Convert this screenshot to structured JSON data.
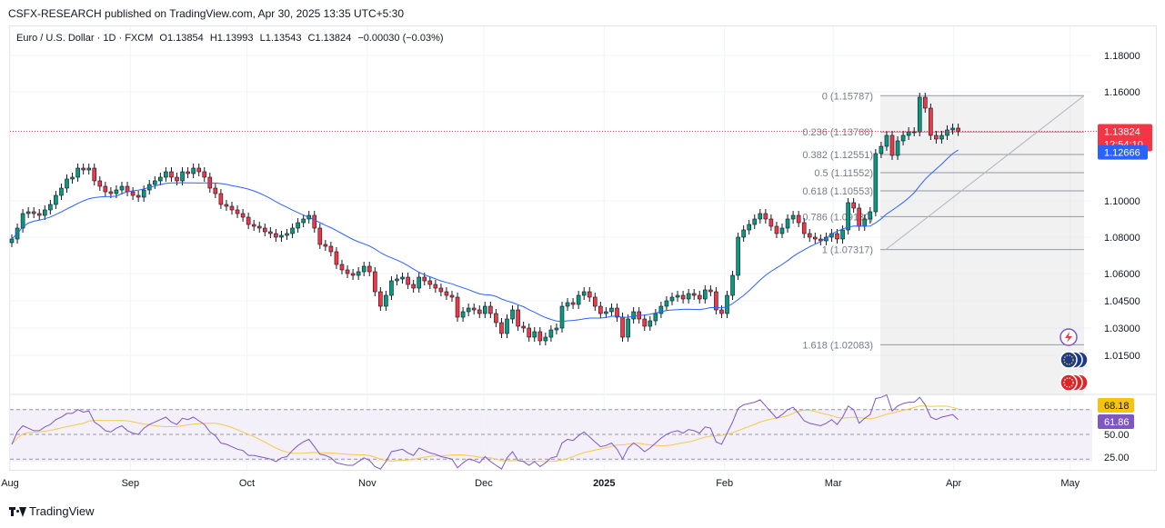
{
  "header": {
    "publisher": "CSFX-RESEARCH published on TradingView.com, Apr 30, 2025 13:35 UTC+5:30"
  },
  "legend": {
    "symbol": "Euro / U.S. Dollar · 1D · FXCM",
    "open": "O1.13854",
    "high": "H1.13993",
    "low": "L1.13543",
    "close": "C1.13824",
    "change": "−0.00030 (−0.03%)"
  },
  "footer": {
    "brand": "TradingView"
  },
  "colors": {
    "up": "#089981",
    "down": "#f23645",
    "ma": "#2962ff",
    "rsi": "#7e57c2",
    "rsi_ma": "#f7c948",
    "price_badge": "#f23645",
    "ma_badge": "#2962ff",
    "rsi_badge": "#7e57c2",
    "rsi_ma_badge": "#f5c40f"
  },
  "icons": [
    "lightning-icon",
    "eu-flag-icon",
    "us-flag-icon"
  ],
  "chart_data": {
    "type": "candlestick",
    "price_axis": {
      "range": [
        1.005,
        1.19
      ],
      "ticks": [
        "1.18000",
        "1.16000",
        "1.10000",
        "1.08000",
        "1.06000",
        "1.04500",
        "1.03000",
        "1.01500"
      ]
    },
    "time_axis": {
      "labels": [
        "Aug",
        "Sep",
        "Oct",
        "Nov",
        "Dec",
        "2025",
        "Feb",
        "Mar",
        "Apr",
        "May"
      ]
    },
    "last_price": {
      "value": "1.13824",
      "countdown": "12:54:10"
    },
    "ma_value": "1.12666",
    "fibonacci": {
      "levels": [
        {
          "label": "0 (1.15787)",
          "value": 1.15787
        },
        {
          "label": "0.236 (1.13788)",
          "value": 1.13788
        },
        {
          "label": "0.382 (1.12551)",
          "value": 1.12551
        },
        {
          "label": "0.5 (1.11552)",
          "value": 1.11552
        },
        {
          "label": "0.618 (1.10553)",
          "value": 1.10553
        },
        {
          "label": "0.786 (1.09130)",
          "value": 1.0913
        },
        {
          "label": "1 (1.07317)",
          "value": 1.07317
        },
        {
          "label": "1.618 (1.02083)",
          "value": 1.02083
        }
      ]
    },
    "rsi": {
      "range": [
        15,
        90
      ],
      "ticks": [
        "50.00",
        "25.00"
      ],
      "value": "61.86",
      "ma_value": "68.18",
      "bands": [
        70,
        30
      ]
    },
    "months_x_days": [
      {
        "label": "Aug",
        "day": 0
      },
      {
        "label": "Sep",
        "day": 31
      },
      {
        "label": "Oct",
        "day": 61
      },
      {
        "label": "Nov",
        "day": 92
      },
      {
        "label": "Dec",
        "day": 122
      },
      {
        "label": "2025",
        "day": 153
      },
      {
        "label": "Feb",
        "day": 184
      },
      {
        "label": "Mar",
        "day": 212
      },
      {
        "label": "Apr",
        "day": 243
      },
      {
        "label": "May",
        "day": 273
      }
    ],
    "closes": [
      1.079,
      1.085,
      1.093,
      1.094,
      1.093,
      1.092,
      1.095,
      1.098,
      1.103,
      1.107,
      1.112,
      1.113,
      1.118,
      1.117,
      1.118,
      1.111,
      1.108,
      1.105,
      1.104,
      1.106,
      1.108,
      1.105,
      1.103,
      1.102,
      1.106,
      1.109,
      1.111,
      1.113,
      1.116,
      1.113,
      1.111,
      1.116,
      1.115,
      1.118,
      1.116,
      1.113,
      1.107,
      1.104,
      1.098,
      1.097,
      1.095,
      1.093,
      1.091,
      1.087,
      1.086,
      1.085,
      1.083,
      1.082,
      1.08,
      1.081,
      1.082,
      1.085,
      1.088,
      1.09,
      1.092,
      1.085,
      1.076,
      1.075,
      1.072,
      1.065,
      1.062,
      1.06,
      1.059,
      1.061,
      1.064,
      1.061,
      1.05,
      1.042,
      1.048,
      1.056,
      1.057,
      1.058,
      1.054,
      1.052,
      1.058,
      1.056,
      1.054,
      1.052,
      1.05,
      1.048,
      1.047,
      1.036,
      1.039,
      1.041,
      1.04,
      1.038,
      1.042,
      1.038,
      1.033,
      1.027,
      1.035,
      1.04,
      1.031,
      1.03,
      1.025,
      1.028,
      1.023,
      1.025,
      1.029,
      1.03,
      1.042,
      1.044,
      1.043,
      1.048,
      1.05,
      1.047,
      1.042,
      1.038,
      1.039,
      1.041,
      1.036,
      1.025,
      1.035,
      1.039,
      1.035,
      1.031,
      1.034,
      1.038,
      1.042,
      1.045,
      1.047,
      1.048,
      1.046,
      1.049,
      1.048,
      1.046,
      1.051,
      1.05,
      1.04,
      1.038,
      1.048,
      1.059,
      1.08,
      1.084,
      1.087,
      1.09,
      1.093,
      1.09,
      1.086,
      1.082,
      1.085,
      1.09,
      1.092,
      1.088,
      1.082,
      1.08,
      1.079,
      1.078,
      1.08,
      1.082,
      1.079,
      1.084,
      1.099,
      1.096,
      1.086,
      1.09,
      1.094,
      1.126,
      1.13,
      1.136,
      1.125,
      1.133,
      1.136,
      1.138,
      1.138,
      1.157,
      1.151,
      1.136,
      1.134,
      1.136,
      1.139,
      1.14,
      1.1382
    ],
    "rsi_values": [
      42,
      52,
      57,
      55,
      53,
      53,
      56,
      58,
      62,
      64,
      67,
      67,
      70,
      68,
      69,
      60,
      57,
      53,
      52,
      55,
      57,
      53,
      51,
      50,
      55,
      58,
      60,
      62,
      64,
      60,
      58,
      63,
      62,
      64,
      61,
      58,
      52,
      49,
      43,
      42,
      40,
      38,
      37,
      33,
      33,
      32,
      31,
      30,
      28,
      31,
      32,
      37,
      41,
      44,
      46,
      40,
      34,
      33,
      31,
      27,
      26,
      25,
      25,
      28,
      31,
      29,
      24,
      22,
      28,
      36,
      37,
      38,
      35,
      33,
      39,
      37,
      35,
      34,
      32,
      31,
      30,
      23,
      27,
      30,
      29,
      27,
      32,
      28,
      25,
      22,
      31,
      36,
      29,
      28,
      25,
      28,
      24,
      27,
      31,
      32,
      43,
      46,
      45,
      49,
      52,
      48,
      44,
      40,
      41,
      43,
      38,
      30,
      39,
      43,
      40,
      36,
      39,
      43,
      47,
      50,
      52,
      53,
      51,
      54,
      53,
      51,
      56,
      55,
      44,
      42,
      51,
      60,
      71,
      74,
      75,
      76,
      78,
      73,
      68,
      63,
      66,
      70,
      72,
      67,
      61,
      59,
      58,
      57,
      59,
      62,
      58,
      64,
      73,
      70,
      59,
      63,
      66,
      79,
      80,
      82,
      69,
      73,
      75,
      76,
      76,
      80,
      74,
      64,
      62,
      64,
      65,
      66,
      62
    ]
  }
}
